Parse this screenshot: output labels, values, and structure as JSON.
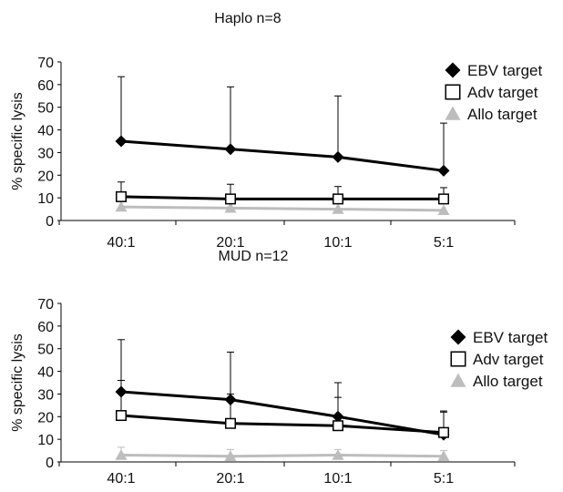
{
  "chart_data": [
    {
      "type": "line",
      "title": "Haplo   n=8",
      "ylabel": "% specific lysis",
      "xlabel": "",
      "categories": [
        "40:1",
        "20:1",
        "10:1",
        "5:1"
      ],
      "ylim": [
        0,
        70
      ],
      "yticks": [
        0,
        10,
        20,
        30,
        40,
        50,
        60,
        70
      ],
      "grid": false,
      "legend_position": "top-right",
      "series": [
        {
          "name": "EBV target",
          "marker": "filled-diamond",
          "color": "#000000",
          "values": [
            35,
            31.5,
            28,
            22
          ],
          "error_upper": [
            63.5,
            59,
            55,
            43
          ]
        },
        {
          "name": "Adv target",
          "marker": "open-square",
          "color": "#000000",
          "values": [
            10.5,
            9.5,
            9.5,
            9.5
          ],
          "error_upper": [
            17,
            16,
            15,
            14.5
          ]
        },
        {
          "name": "Allo target",
          "marker": "filled-triangle",
          "color": "#bdbdbd",
          "values": [
            6,
            5.5,
            5,
            4.5
          ],
          "error_upper": [
            null,
            null,
            null,
            null
          ]
        }
      ]
    },
    {
      "type": "line",
      "title": "MUD   n=12",
      "ylabel": "% specific lysis",
      "xlabel": "",
      "categories": [
        "40:1",
        "20:1",
        "10:1",
        "5:1"
      ],
      "ylim": [
        0,
        70
      ],
      "yticks": [
        0,
        10,
        20,
        30,
        40,
        50,
        60,
        70
      ],
      "grid": false,
      "legend_position": "right",
      "series": [
        {
          "name": "EBV target",
          "marker": "filled-diamond",
          "color": "#000000",
          "values": [
            31,
            27.5,
            20,
            12
          ],
          "error_upper": [
            54,
            48.5,
            35,
            22
          ]
        },
        {
          "name": "Adv target",
          "marker": "open-square",
          "color": "#000000",
          "values": [
            20.5,
            17,
            16,
            13
          ],
          "error_upper": [
            36,
            30,
            28.5,
            22.5
          ]
        },
        {
          "name": "Allo target",
          "marker": "filled-triangle",
          "color": "#bdbdbd",
          "values": [
            3,
            2.5,
            3,
            2.5
          ],
          "error_upper": [
            6.5,
            5.5,
            5.5,
            5
          ]
        }
      ]
    }
  ]
}
